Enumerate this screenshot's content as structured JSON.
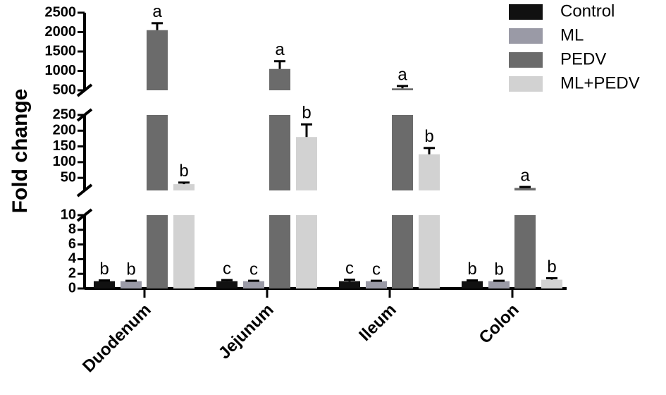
{
  "chart_data": {
    "type": "bar",
    "y_label": "Fold change",
    "categories": [
      "Duodenum",
      "Jejunum",
      "Ileum",
      "Colon"
    ],
    "series": [
      {
        "name": "Control",
        "color": "#111111",
        "values": [
          1,
          1,
          1,
          1
        ],
        "errors": [
          0.1,
          0.15,
          0.2,
          0.1
        ],
        "letters": [
          "b",
          "c",
          "c",
          "b"
        ]
      },
      {
        "name": "ML",
        "color": "#9a9aa6",
        "values": [
          1,
          1,
          1,
          1
        ],
        "errors": [
          0.05,
          0.05,
          0.05,
          0.05
        ],
        "letters": [
          "b",
          "c",
          "c",
          "b"
        ]
      },
      {
        "name": "PEDV",
        "color": "#6b6b6b",
        "values": [
          2050,
          1050,
          550,
          18
        ],
        "errors": [
          180,
          200,
          60,
          3
        ],
        "letters": [
          "a",
          "a",
          "a",
          "a"
        ]
      },
      {
        "name": "ML+PEDV",
        "color": "#d2d2d2",
        "values": [
          30,
          180,
          125,
          1.2
        ],
        "errors": [
          5,
          40,
          20,
          0.2
        ],
        "letters": [
          "b",
          "b",
          "b",
          "b"
        ]
      }
    ],
    "y_segments": [
      {
        "ylim": [
          0,
          10
        ],
        "yticks": [
          0,
          2,
          4,
          6,
          8,
          10
        ]
      },
      {
        "ylim": [
          10,
          250
        ],
        "yticks": [
          50,
          100,
          150,
          200,
          250
        ]
      },
      {
        "ylim": [
          500,
          2500
        ],
        "yticks": [
          500,
          1000,
          1500,
          2000,
          2500
        ]
      }
    ]
  }
}
